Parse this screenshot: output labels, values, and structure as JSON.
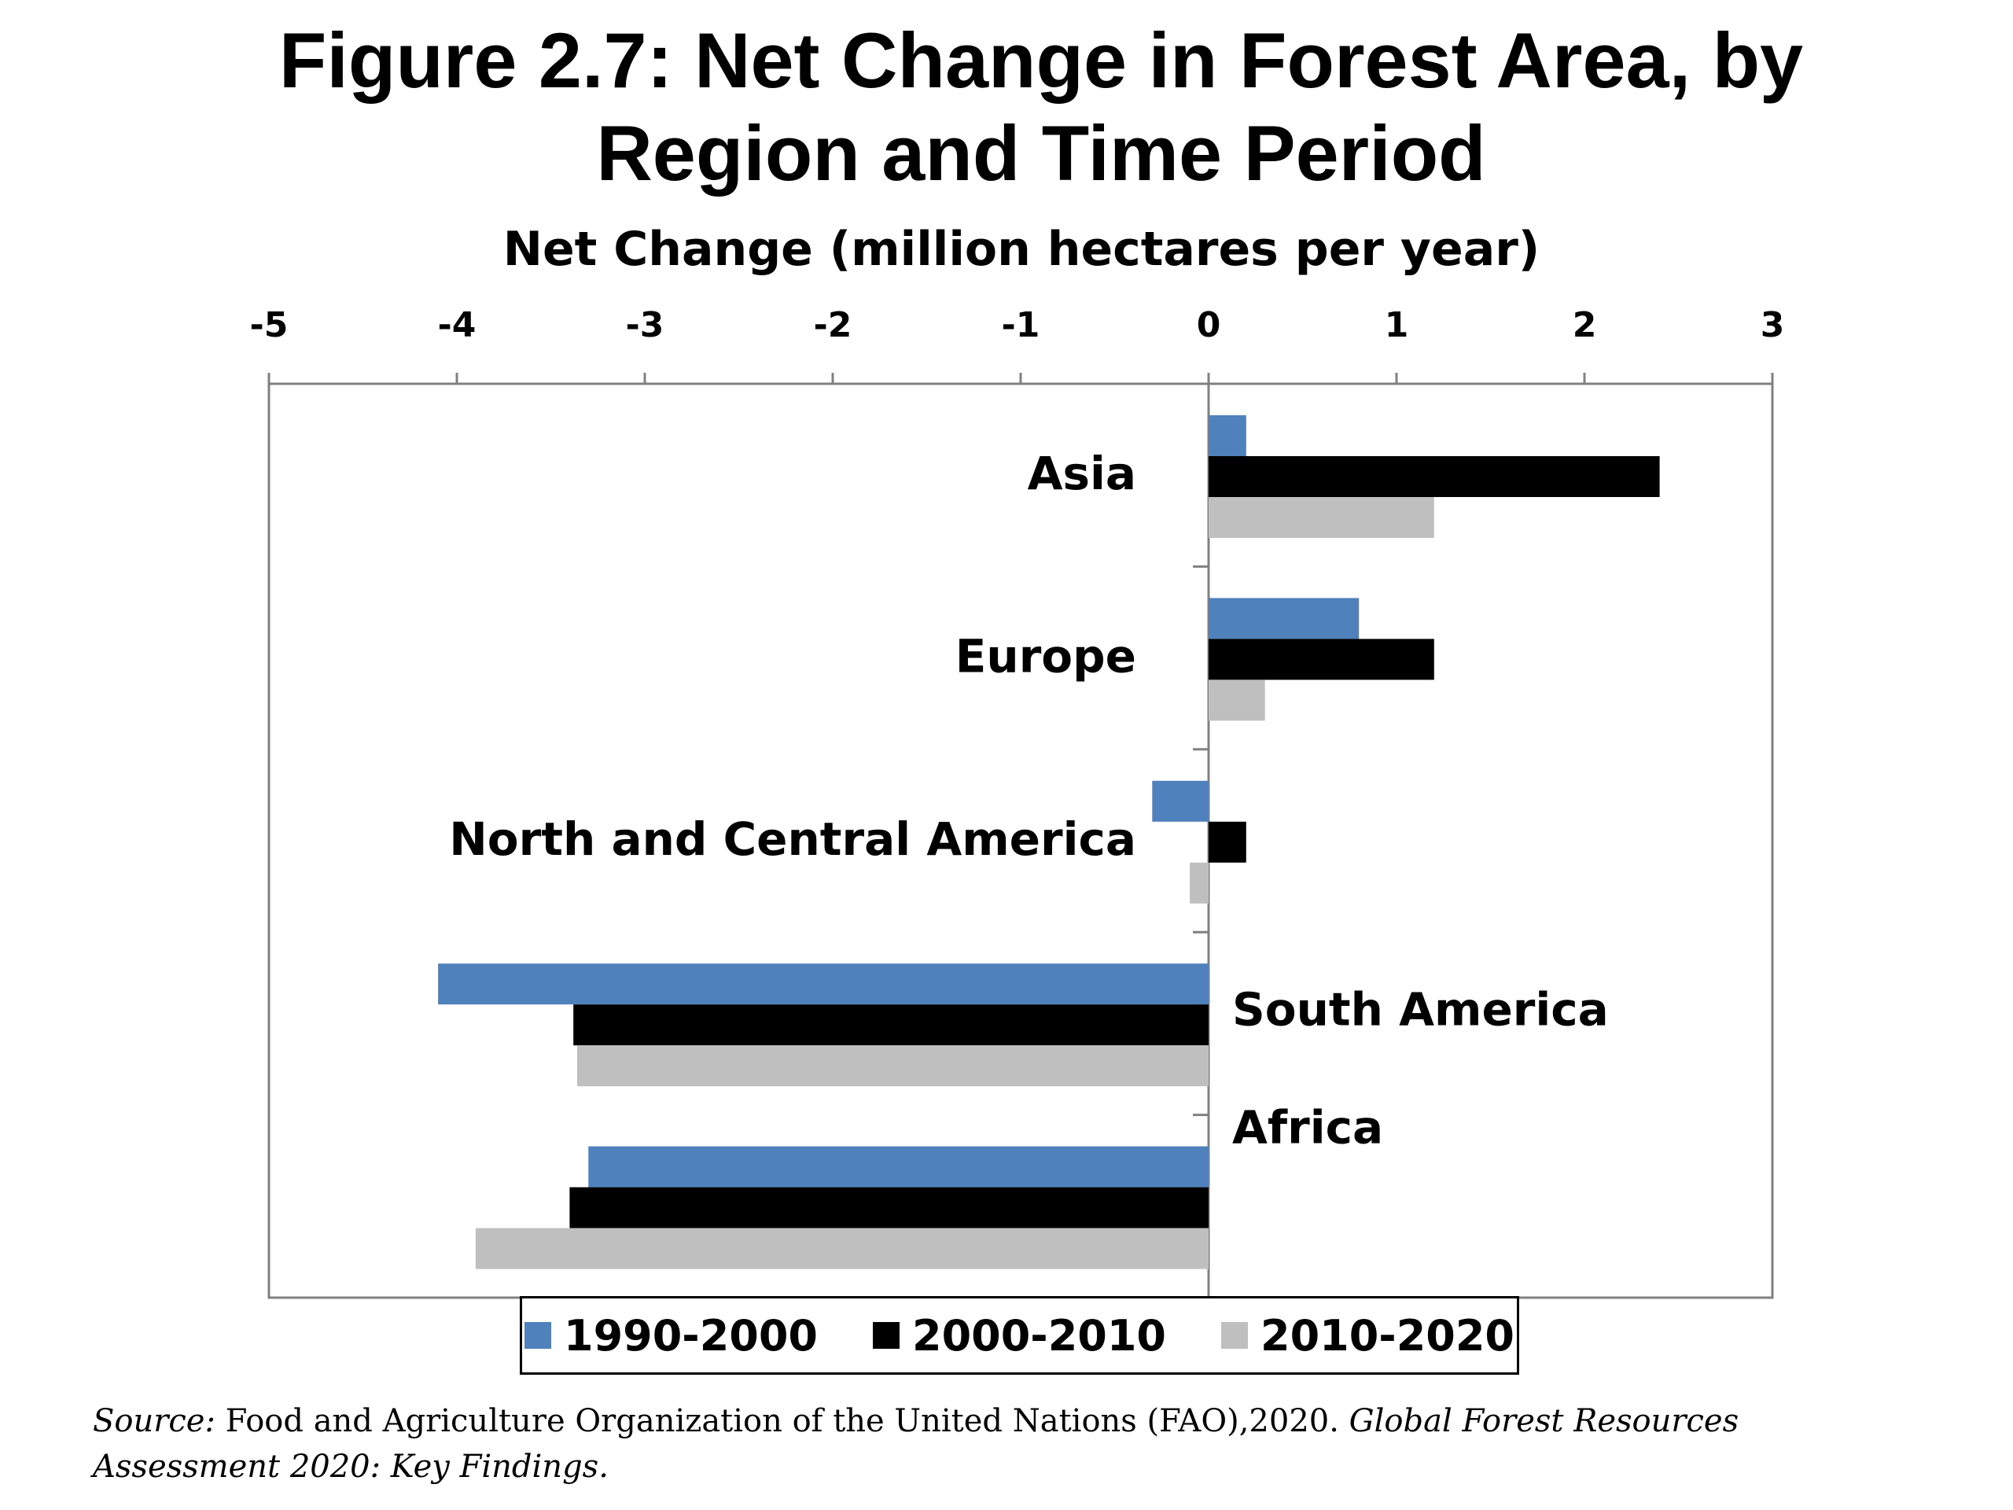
{
  "title_line1": "Figure 2.7: Net Change in Forest Area, by",
  "title_line2": "Region and Time Period",
  "source": {
    "prefix": "Source:",
    "text": " Food and Agriculture Organization of the United Nations (FAO),2020. ",
    "publication": "Global Forest Resources Assessment 2020: Key Findings."
  },
  "chart_data": {
    "type": "bar",
    "orientation": "horizontal",
    "title": "Figure 2.7: Net Change in Forest Area, by Region and Time Period",
    "xlabel": "Net Change (million hectares per year)",
    "ylabel": "",
    "xlim": [
      -5,
      3
    ],
    "x_ticks": [
      "-5",
      "-4",
      "-3",
      "-2",
      "-1",
      "0",
      "1",
      "2",
      "3"
    ],
    "x_axis_position": "top",
    "grid": false,
    "legend_position": "bottom",
    "categories": [
      "Asia",
      "Europe",
      "North and Central America",
      "South America",
      "Africa"
    ],
    "series": [
      {
        "name": "1990-2000",
        "color": "#4f81bd",
        "values": [
          0.2,
          0.8,
          -0.3,
          -4.1,
          -3.3
        ]
      },
      {
        "name": "2000-2010",
        "color": "#000000",
        "values": [
          2.4,
          1.2,
          0.2,
          -3.38,
          -3.4
        ]
      },
      {
        "name": "2010-2020",
        "color": "#bfbfbf",
        "values": [
          1.2,
          0.3,
          -0.1,
          -3.36,
          -3.9
        ]
      }
    ]
  }
}
